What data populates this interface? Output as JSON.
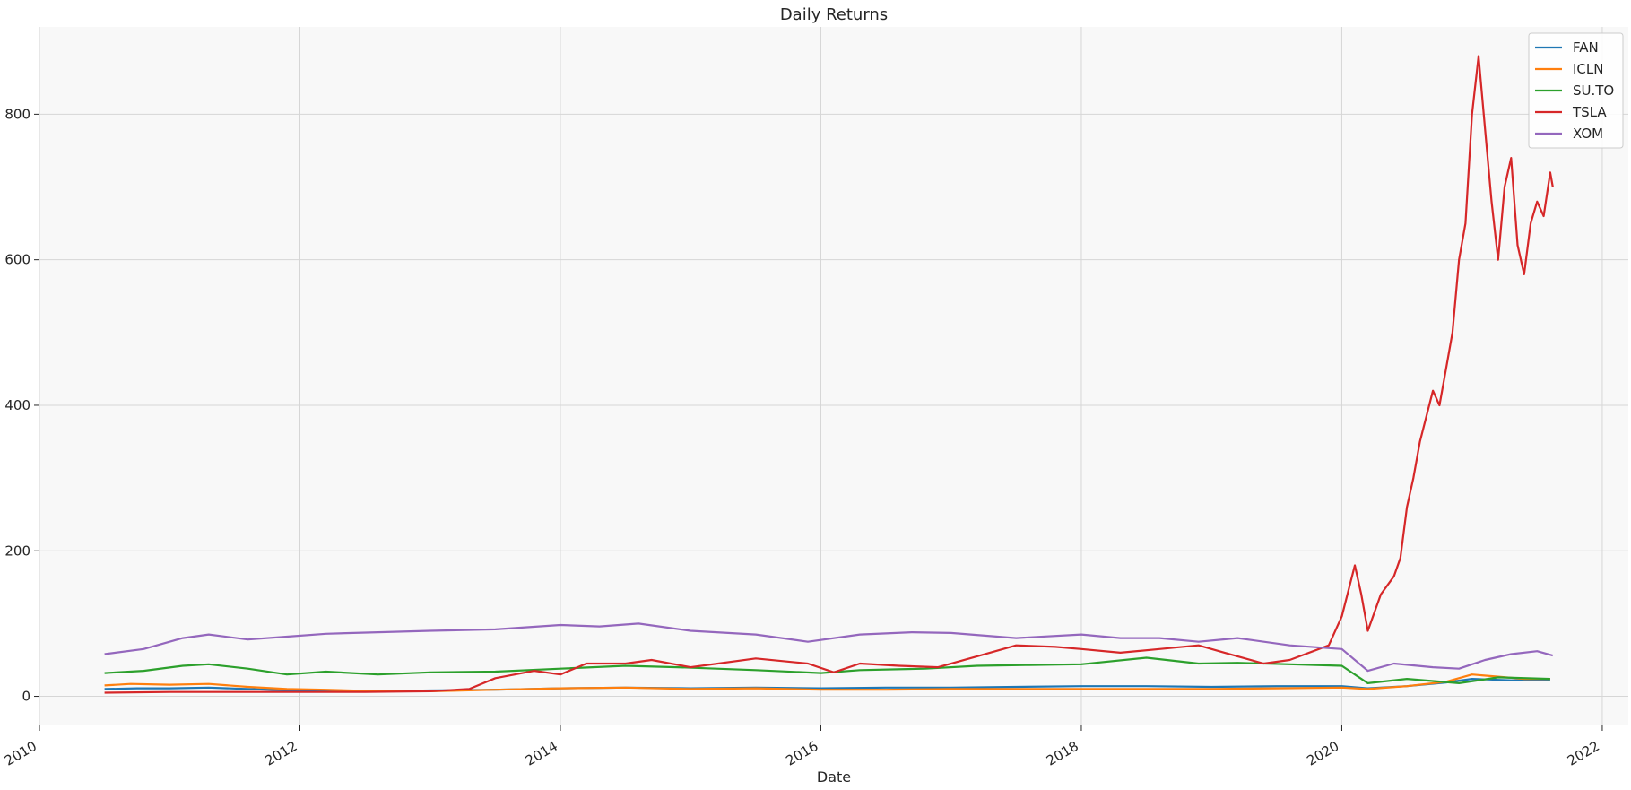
{
  "chart_data": {
    "type": "line",
    "title": "Daily Returns",
    "xlabel": "Date",
    "ylabel": "",
    "x_ticks": [
      "2010",
      "2012",
      "2014",
      "2016",
      "2018",
      "2020",
      "2022"
    ],
    "y_ticks": [
      0,
      200,
      400,
      600,
      800
    ],
    "xlim": [
      2010.0,
      2022.2
    ],
    "ylim": [
      -40,
      920
    ],
    "grid": true,
    "legend": "top-right",
    "series": [
      {
        "name": "FAN",
        "color": "#1f77b4",
        "points": [
          [
            2010.5,
            10
          ],
          [
            2010.75,
            11
          ],
          [
            2011.0,
            11
          ],
          [
            2011.3,
            12
          ],
          [
            2011.6,
            10
          ],
          [
            2011.9,
            8
          ],
          [
            2012.2,
            8
          ],
          [
            2012.6,
            7
          ],
          [
            2013.0,
            8
          ],
          [
            2013.5,
            9
          ],
          [
            2014.0,
            11
          ],
          [
            2014.5,
            12
          ],
          [
            2015.0,
            11
          ],
          [
            2015.5,
            12
          ],
          [
            2016.0,
            11
          ],
          [
            2016.5,
            12
          ],
          [
            2017.0,
            12
          ],
          [
            2017.5,
            13
          ],
          [
            2018.0,
            14
          ],
          [
            2018.5,
            14
          ],
          [
            2019.0,
            13
          ],
          [
            2019.5,
            14
          ],
          [
            2020.0,
            14
          ],
          [
            2020.2,
            11
          ],
          [
            2020.5,
            14
          ],
          [
            2020.8,
            19
          ],
          [
            2021.0,
            24
          ],
          [
            2021.3,
            22
          ],
          [
            2021.6,
            22
          ]
        ]
      },
      {
        "name": "ICLN",
        "color": "#ff7f0e",
        "points": [
          [
            2010.5,
            15
          ],
          [
            2010.7,
            17
          ],
          [
            2011.0,
            16
          ],
          [
            2011.3,
            17
          ],
          [
            2011.6,
            13
          ],
          [
            2011.9,
            10
          ],
          [
            2012.2,
            9
          ],
          [
            2012.6,
            7
          ],
          [
            2013.0,
            7
          ],
          [
            2013.5,
            9
          ],
          [
            2014.0,
            11
          ],
          [
            2014.5,
            12
          ],
          [
            2015.0,
            10
          ],
          [
            2015.5,
            11
          ],
          [
            2016.0,
            9
          ],
          [
            2016.5,
            9
          ],
          [
            2017.0,
            10
          ],
          [
            2017.5,
            10
          ],
          [
            2018.0,
            10
          ],
          [
            2018.5,
            10
          ],
          [
            2019.0,
            10
          ],
          [
            2019.5,
            11
          ],
          [
            2020.0,
            12
          ],
          [
            2020.2,
            10
          ],
          [
            2020.5,
            14
          ],
          [
            2020.8,
            20
          ],
          [
            2021.0,
            30
          ],
          [
            2021.2,
            27
          ],
          [
            2021.4,
            24
          ],
          [
            2021.6,
            24
          ]
        ]
      },
      {
        "name": "SU.TO",
        "color": "#2ca02c",
        "points": [
          [
            2010.5,
            32
          ],
          [
            2010.8,
            35
          ],
          [
            2011.1,
            42
          ],
          [
            2011.3,
            44
          ],
          [
            2011.6,
            38
          ],
          [
            2011.9,
            30
          ],
          [
            2012.2,
            34
          ],
          [
            2012.6,
            30
          ],
          [
            2013.0,
            33
          ],
          [
            2013.5,
            34
          ],
          [
            2014.0,
            38
          ],
          [
            2014.5,
            42
          ],
          [
            2014.9,
            40
          ],
          [
            2015.2,
            38
          ],
          [
            2015.5,
            36
          ],
          [
            2016.0,
            32
          ],
          [
            2016.3,
            36
          ],
          [
            2016.8,
            38
          ],
          [
            2017.2,
            42
          ],
          [
            2017.6,
            43
          ],
          [
            2018.0,
            44
          ],
          [
            2018.5,
            53
          ],
          [
            2018.9,
            45
          ],
          [
            2019.2,
            46
          ],
          [
            2019.6,
            44
          ],
          [
            2020.0,
            42
          ],
          [
            2020.2,
            18
          ],
          [
            2020.5,
            24
          ],
          [
            2020.9,
            18
          ],
          [
            2021.2,
            26
          ],
          [
            2021.6,
            24
          ]
        ]
      },
      {
        "name": "TSLA",
        "color": "#d62728",
        "points": [
          [
            2010.5,
            5
          ],
          [
            2011.0,
            6
          ],
          [
            2011.5,
            6
          ],
          [
            2012.0,
            6
          ],
          [
            2012.5,
            6
          ],
          [
            2013.0,
            7
          ],
          [
            2013.3,
            10
          ],
          [
            2013.5,
            25
          ],
          [
            2013.8,
            35
          ],
          [
            2014.0,
            30
          ],
          [
            2014.2,
            45
          ],
          [
            2014.5,
            45
          ],
          [
            2014.7,
            50
          ],
          [
            2015.0,
            40
          ],
          [
            2015.5,
            52
          ],
          [
            2015.9,
            45
          ],
          [
            2016.1,
            33
          ],
          [
            2016.3,
            45
          ],
          [
            2016.6,
            42
          ],
          [
            2016.9,
            40
          ],
          [
            2017.2,
            55
          ],
          [
            2017.5,
            70
          ],
          [
            2017.8,
            68
          ],
          [
            2018.0,
            65
          ],
          [
            2018.3,
            60
          ],
          [
            2018.6,
            65
          ],
          [
            2018.9,
            70
          ],
          [
            2019.1,
            60
          ],
          [
            2019.4,
            45
          ],
          [
            2019.6,
            50
          ],
          [
            2019.9,
            70
          ],
          [
            2020.0,
            110
          ],
          [
            2020.1,
            180
          ],
          [
            2020.15,
            140
          ],
          [
            2020.2,
            90
          ],
          [
            2020.3,
            140
          ],
          [
            2020.4,
            165
          ],
          [
            2020.45,
            190
          ],
          [
            2020.5,
            260
          ],
          [
            2020.55,
            300
          ],
          [
            2020.6,
            350
          ],
          [
            2020.7,
            420
          ],
          [
            2020.75,
            400
          ],
          [
            2020.8,
            450
          ],
          [
            2020.85,
            500
          ],
          [
            2020.9,
            600
          ],
          [
            2020.95,
            650
          ],
          [
            2021.0,
            800
          ],
          [
            2021.05,
            880
          ],
          [
            2021.1,
            780
          ],
          [
            2021.15,
            680
          ],
          [
            2021.2,
            600
          ],
          [
            2021.25,
            700
          ],
          [
            2021.3,
            740
          ],
          [
            2021.35,
            620
          ],
          [
            2021.4,
            580
          ],
          [
            2021.45,
            650
          ],
          [
            2021.5,
            680
          ],
          [
            2021.55,
            660
          ],
          [
            2021.6,
            720
          ],
          [
            2021.62,
            700
          ]
        ]
      },
      {
        "name": "XOM",
        "color": "#9467bd",
        "points": [
          [
            2010.5,
            58
          ],
          [
            2010.8,
            65
          ],
          [
            2011.1,
            80
          ],
          [
            2011.3,
            85
          ],
          [
            2011.6,
            78
          ],
          [
            2011.9,
            82
          ],
          [
            2012.2,
            86
          ],
          [
            2012.6,
            88
          ],
          [
            2013.0,
            90
          ],
          [
            2013.5,
            92
          ],
          [
            2014.0,
            98
          ],
          [
            2014.3,
            96
          ],
          [
            2014.6,
            100
          ],
          [
            2015.0,
            90
          ],
          [
            2015.5,
            85
          ],
          [
            2015.9,
            75
          ],
          [
            2016.3,
            85
          ],
          [
            2016.7,
            88
          ],
          [
            2017.0,
            87
          ],
          [
            2017.5,
            80
          ],
          [
            2018.0,
            85
          ],
          [
            2018.3,
            80
          ],
          [
            2018.6,
            80
          ],
          [
            2018.9,
            75
          ],
          [
            2019.2,
            80
          ],
          [
            2019.6,
            70
          ],
          [
            2020.0,
            65
          ],
          [
            2020.2,
            35
          ],
          [
            2020.4,
            45
          ],
          [
            2020.7,
            40
          ],
          [
            2020.9,
            38
          ],
          [
            2021.1,
            50
          ],
          [
            2021.3,
            58
          ],
          [
            2021.5,
            62
          ],
          [
            2021.62,
            56
          ]
        ]
      }
    ]
  }
}
